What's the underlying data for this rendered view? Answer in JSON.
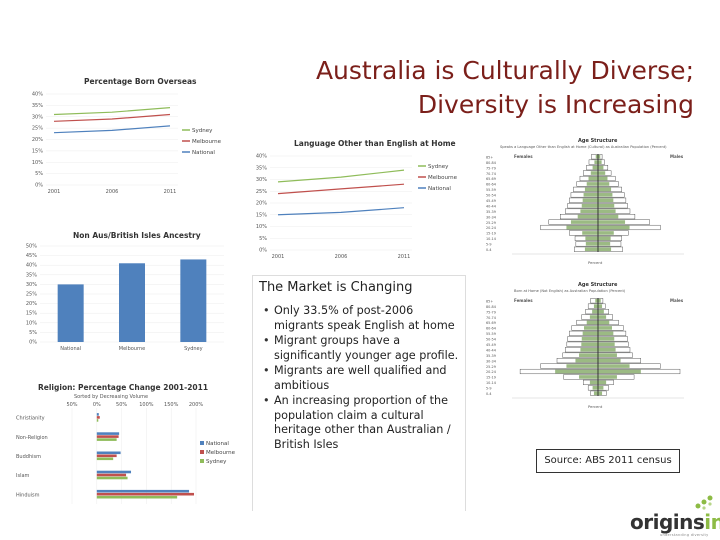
{
  "slide": {
    "title_line1": "Australia is Culturally Diverse;",
    "title_line2": "Diversity is Increasing",
    "panel_title": "The Market is Changing",
    "bullets": [
      "Only 33.5% of post-2006 migrants speak English at home",
      "Migrant groups have a significantly younger age profile.",
      "Migrants are well qualified and ambitious",
      "An increasing proportion of the population claim a cultural heritage other than Australian / British Isles"
    ],
    "source": "Source: ABS 2011 census",
    "logo": {
      "part1": "origins",
      "part2": "info",
      "sub": "understanding diversity"
    }
  },
  "colors": {
    "title": "#7b1f1a",
    "sydney": "#8fbc5a",
    "melbourne": "#c0504d",
    "national": "#4f81bd",
    "pyramid_fill": "#7aa35a"
  },
  "chart_data": [
    {
      "type": "line",
      "title": "Percentage Born Overseas",
      "categories": [
        "2001",
        "2006",
        "2011"
      ],
      "yticks": [
        "40%",
        "35%",
        "30%",
        "25%",
        "20%",
        "15%",
        "10%",
        "5%",
        "0%"
      ],
      "ylim": [
        0,
        40
      ],
      "series": [
        {
          "name": "Sydney",
          "values": [
            31,
            32,
            34
          ]
        },
        {
          "name": "Melbourne",
          "values": [
            28,
            29,
            31
          ]
        },
        {
          "name": "National",
          "values": [
            23,
            24,
            26
          ]
        }
      ]
    },
    {
      "type": "line",
      "title": "Language Other than English at Home",
      "categories": [
        "2001",
        "2006",
        "2011"
      ],
      "yticks": [
        "40%",
        "35%",
        "30%",
        "25%",
        "20%",
        "15%",
        "10%",
        "5%",
        "0%"
      ],
      "ylim": [
        0,
        40
      ],
      "series": [
        {
          "name": "Sydney",
          "values": [
            29,
            31,
            34
          ]
        },
        {
          "name": "Melbourne",
          "values": [
            24,
            26,
            28
          ]
        },
        {
          "name": "National",
          "values": [
            15,
            16,
            18
          ]
        }
      ]
    },
    {
      "type": "bar",
      "title": "Non Aus/British Isles Ancestry",
      "categories": [
        "National",
        "Melbourne",
        "Sydney"
      ],
      "yticks": [
        "50%",
        "45%",
        "40%",
        "35%",
        "30%",
        "25%",
        "20%",
        "15%",
        "10%",
        "5%",
        "0%"
      ],
      "ylim": [
        0,
        50
      ],
      "values": [
        30,
        41,
        43
      ]
    },
    {
      "type": "bar",
      "title": "Religion: Percentage Change 2001-2011",
      "subtitle": "Sorted by Decreasing Volume",
      "categories": [
        "Christianity",
        "Non-Religion",
        "Buddhism",
        "Islam",
        "Hinduism"
      ],
      "xticks": [
        "50%",
        "0%",
        "50%",
        "100%",
        "150%",
        "200%"
      ],
      "xlim": [
        -50,
        200
      ],
      "series": [
        {
          "name": "National",
          "values": [
            4,
            45,
            48,
            69,
            186
          ]
        },
        {
          "name": "Melbourne",
          "values": [
            6,
            44,
            40,
            59,
            196
          ]
        },
        {
          "name": "Sydney",
          "values": [
            3,
            40,
            33,
            62,
            162
          ]
        }
      ]
    },
    {
      "type": "bar",
      "title": "Age Structure",
      "subtitle": "Speaks a Language Other than English at Home (Cultural) as Australian Population (Percent)",
      "categories": [
        "85+",
        "80-84",
        "75-79",
        "70-74",
        "65-69",
        "60-64",
        "55-59",
        "50-54",
        "45-49",
        "40-44",
        "35-39",
        "30-34",
        "25-29",
        "20-24",
        "15-19",
        "10-14",
        "5-9",
        "0-4"
      ],
      "series": [
        {
          "name": "Females",
          "values": [
            0.8,
            1.1,
            1.4,
            1.8,
            2.2,
            2.6,
            3.0,
            3.3,
            3.5,
            3.7,
            4.0,
            4.6,
            6.0,
            7.0,
            3.5,
            2.8,
            2.7,
            2.9
          ]
        },
        {
          "name": "Males",
          "values": [
            0.5,
            0.8,
            1.2,
            1.6,
            2.1,
            2.5,
            2.9,
            3.2,
            3.4,
            3.6,
            3.9,
            4.5,
            6.3,
            7.6,
            3.7,
            2.9,
            2.8,
            3.0
          ]
        }
      ],
      "xlabel": "Percent"
    },
    {
      "type": "bar",
      "title": "Age Structure",
      "subtitle": "Born at Home (Not English) as Australian Population (Percent)",
      "categories": [
        "85+",
        "80-84",
        "75-79",
        "70-74",
        "65-69",
        "60-64",
        "55-59",
        "50-54",
        "45-49",
        "40-44",
        "35-39",
        "30-34",
        "25-29",
        "20-24",
        "15-19",
        "10-14",
        "5-9",
        "0-4"
      ],
      "series": [
        {
          "name": "Females",
          "values": [
            0.9,
            1.2,
            1.5,
            2.0,
            2.6,
            3.2,
            3.5,
            3.7,
            3.8,
            4.0,
            4.3,
            5.0,
            7.0,
            9.5,
            4.2,
            1.8,
            1.2,
            0.9
          ]
        },
        {
          "name": "Males",
          "values": [
            0.6,
            0.9,
            1.3,
            1.8,
            2.5,
            3.1,
            3.4,
            3.6,
            3.7,
            3.9,
            4.2,
            5.2,
            7.6,
            10.0,
            4.4,
            1.9,
            1.3,
            1.0
          ]
        }
      ],
      "xlabel": "Percent"
    }
  ]
}
